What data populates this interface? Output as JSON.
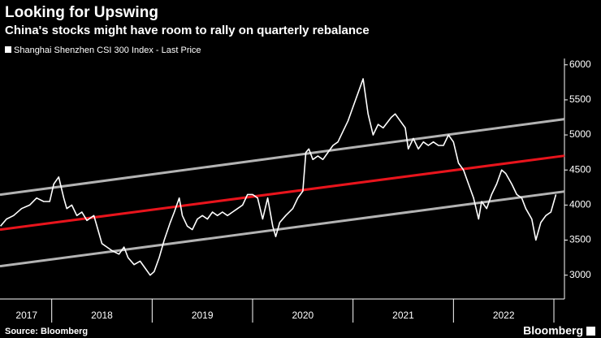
{
  "chart_data": {
    "type": "line",
    "title": "Looking for Upswing",
    "subtitle": "China's stocks might have room to rally on quarterly rebalance",
    "source": "Source: Bloomberg",
    "brand": "Bloomberg",
    "legend": "top-left",
    "xlim": [
      2017.485,
      2023.105
    ],
    "ylim": [
      2660,
      6090
    ],
    "yticks": [
      3000,
      3500,
      4000,
      4500,
      5000,
      5500,
      6000
    ],
    "xticks": [
      {
        "value": 2017.75,
        "label": "2017"
      },
      {
        "value": 2018.5,
        "label": "2018"
      },
      {
        "value": 2019.5,
        "label": "2019"
      },
      {
        "value": 2020.5,
        "label": "2020"
      },
      {
        "value": 2021.5,
        "label": "2021"
      },
      {
        "value": 2022.5,
        "label": "2022"
      }
    ],
    "x_separators": [
      2018,
      2019,
      2020,
      2021,
      2022,
      2023
    ],
    "series": [
      {
        "name": "Shanghai Shenzhen CSI 300 Index - Last Price",
        "color": "#ffffff",
        "x": [
          2017.49,
          2017.55,
          2017.62,
          2017.7,
          2017.78,
          2017.85,
          2017.92,
          2017.98,
          2018.02,
          2018.07,
          2018.12,
          2018.15,
          2018.2,
          2018.25,
          2018.3,
          2018.35,
          2018.42,
          2018.47,
          2018.5,
          2018.55,
          2018.6,
          2018.67,
          2018.72,
          2018.76,
          2018.82,
          2018.88,
          2018.93,
          2018.98,
          2019.02,
          2019.07,
          2019.12,
          2019.18,
          2019.22,
          2019.27,
          2019.3,
          2019.35,
          2019.4,
          2019.45,
          2019.5,
          2019.55,
          2019.6,
          2019.65,
          2019.7,
          2019.75,
          2019.8,
          2019.85,
          2019.9,
          2019.95,
          2020.0,
          2020.05,
          2020.1,
          2020.15,
          2020.2,
          2020.23,
          2020.27,
          2020.33,
          2020.4,
          2020.45,
          2020.5,
          2020.53,
          2020.56,
          2020.6,
          2020.65,
          2020.7,
          2020.75,
          2020.8,
          2020.85,
          2020.9,
          2020.95,
          2021.0,
          2021.05,
          2021.1,
          2021.15,
          2021.2,
          2021.25,
          2021.3,
          2021.38,
          2021.42,
          2021.47,
          2021.52,
          2021.55,
          2021.6,
          2021.65,
          2021.7,
          2021.75,
          2021.8,
          2021.85,
          2021.9,
          2021.95,
          2022.0,
          2022.05,
          2022.1,
          2022.15,
          2022.2,
          2022.25,
          2022.28,
          2022.33,
          2022.38,
          2022.43,
          2022.48,
          2022.52,
          2022.58,
          2022.63,
          2022.68,
          2022.72,
          2022.78,
          2022.82,
          2022.87,
          2022.92,
          2022.97,
          2023.02
        ],
        "values": [
          3700,
          3800,
          3850,
          3950,
          4000,
          4100,
          4050,
          4050,
          4300,
          4400,
          4100,
          3950,
          4000,
          3850,
          3900,
          3780,
          3850,
          3600,
          3450,
          3400,
          3350,
          3300,
          3400,
          3250,
          3150,
          3200,
          3100,
          3000,
          3050,
          3250,
          3500,
          3750,
          3900,
          4100,
          3850,
          3700,
          3650,
          3800,
          3850,
          3800,
          3900,
          3850,
          3900,
          3850,
          3900,
          3950,
          4000,
          4150,
          4150,
          4100,
          3800,
          4100,
          3700,
          3550,
          3750,
          3850,
          3950,
          4100,
          4200,
          4750,
          4800,
          4650,
          4700,
          4650,
          4750,
          4850,
          4900,
          5050,
          5200,
          5400,
          5600,
          5800,
          5300,
          5000,
          5150,
          5100,
          5250,
          5300,
          5200,
          5100,
          4800,
          4950,
          4800,
          4900,
          4850,
          4900,
          4850,
          4850,
          5000,
          4900,
          4600,
          4500,
          4300,
          4100,
          3800,
          4050,
          3950,
          4150,
          4300,
          4500,
          4450,
          4300,
          4150,
          4100,
          3950,
          3800,
          3500,
          3750,
          3850,
          3900,
          4150
        ]
      },
      {
        "color": "#b3b3b3",
        "x": [
          2017.485,
          2023.105
        ],
        "values": [
          4147,
          5225
        ]
      },
      {
        "color": "#e8141c",
        "x": [
          2017.485,
          2023.105
        ],
        "values": [
          3649,
          4703
        ]
      },
      {
        "color": "#b3b3b3",
        "x": [
          2017.485,
          2023.105
        ],
        "values": [
          3127,
          4193
        ]
      }
    ]
  }
}
